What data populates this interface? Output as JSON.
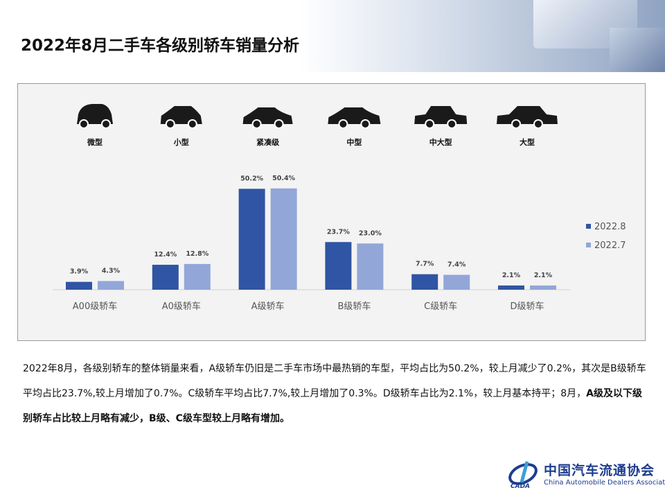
{
  "title": "2022年8月二手车各级别轿车销量分析",
  "car_types": [
    {
      "label": "微型",
      "icon": "microcar-icon"
    },
    {
      "label": "小型",
      "icon": "hatchback-icon"
    },
    {
      "label": "紧凑级",
      "icon": "compact-sedan-icon"
    },
    {
      "label": "中型",
      "icon": "midsize-sedan-icon"
    },
    {
      "label": "中大型",
      "icon": "fullsize-sedan-icon"
    },
    {
      "label": "大型",
      "icon": "large-sedan-icon"
    }
  ],
  "chart_data": {
    "type": "bar",
    "categories": [
      "A00级轿车",
      "A0级轿车",
      "A级轿车",
      "B级轿车",
      "C级轿车",
      "D级轿车"
    ],
    "series": [
      {
        "name": "2022.8",
        "values": [
          3.9,
          12.4,
          50.2,
          23.7,
          7.7,
          2.1
        ],
        "labels": [
          "3.9%",
          "12.4%",
          "50.2%",
          "23.7%",
          "7.7%",
          "2.1%"
        ],
        "color": "#2f55a4"
      },
      {
        "name": "2022.7",
        "values": [
          4.3,
          12.8,
          50.4,
          23.0,
          7.4,
          2.1
        ],
        "labels": [
          "4.3%",
          "12.8%",
          "50.4%",
          "23.0%",
          "7.4%",
          "2.1%"
        ],
        "color": "#92a6d8"
      }
    ],
    "unit": "%",
    "legend": "right",
    "grid": false
  },
  "summary": {
    "p1": "2022年8月，各级别轿车的整体销量来看，A级轿车仍旧是二手车市场中最热销的车型，平均占比为50.2%，较上月减少了0.2%，其次是B级轿车平均占比23.7%,较上月增加了0.7%。C级轿车平均占比7.7%,较上月增加了0.3%。D级轿车占比为2.1%，较上月基本持平；8月，",
    "bold": "A级及以下级别轿车占比较上月略有减少，B级、C级车型较上月略有增加。"
  },
  "logo": {
    "cn": "中国汽车流通协会",
    "en": "China Automobile Dealers Association",
    "mark": "CADA"
  }
}
